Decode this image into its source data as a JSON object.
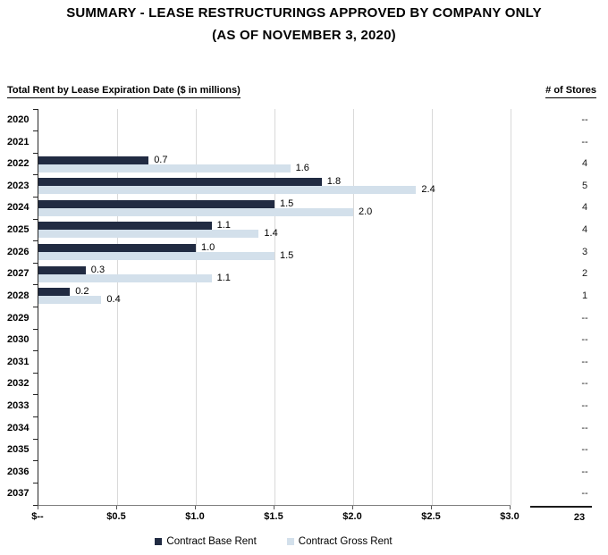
{
  "title": {
    "line1": "SUMMARY - LEASE RESTRUCTURINGS APPROVED BY COMPANY ONLY",
    "line2": "(AS OF NOVEMBER 3, 2020)"
  },
  "section": {
    "left_heading": "Total Rent by Lease Expiration Date ($ in millions)",
    "right_heading": "# of Stores"
  },
  "chart_data": {
    "type": "bar",
    "orientation": "horizontal",
    "title": "Total Rent by Lease Expiration Date ($ in millions)",
    "categories": [
      "2020",
      "2021",
      "2022",
      "2023",
      "2024",
      "2025",
      "2026",
      "2027",
      "2028",
      "2029",
      "2030",
      "2031",
      "2032",
      "2033",
      "2034",
      "2035",
      "2036",
      "2037"
    ],
    "series": [
      {
        "name": "Contract Base Rent",
        "color": "#212B42",
        "values": [
          null,
          null,
          0.7,
          1.8,
          1.5,
          1.1,
          1.0,
          0.3,
          0.2,
          null,
          null,
          null,
          null,
          null,
          null,
          null,
          null,
          null
        ]
      },
      {
        "name": "Contract Gross Rent",
        "color": "#D3E0EB",
        "values": [
          null,
          null,
          1.6,
          2.4,
          2.0,
          1.4,
          1.5,
          1.1,
          0.4,
          null,
          null,
          null,
          null,
          null,
          null,
          null,
          null,
          null
        ]
      }
    ],
    "xlim": [
      0,
      3.0
    ],
    "x_tick_labels": [
      "$--",
      "$0.5",
      "$1.0",
      "$1.5",
      "$2.0",
      "$2.5",
      "$3.0"
    ],
    "grid": true,
    "value_labels": true,
    "legend_position": "bottom",
    "axis_colors": {
      "gridline": "#d9d9d9",
      "y_axis": "#262626",
      "x_axis": "#7f7f7f"
    }
  },
  "stores": {
    "values": [
      "--",
      "--",
      "4",
      "5",
      "4",
      "4",
      "3",
      "2",
      "1",
      "--",
      "--",
      "--",
      "--",
      "--",
      "--",
      "--",
      "--",
      "--"
    ],
    "total": "23"
  }
}
